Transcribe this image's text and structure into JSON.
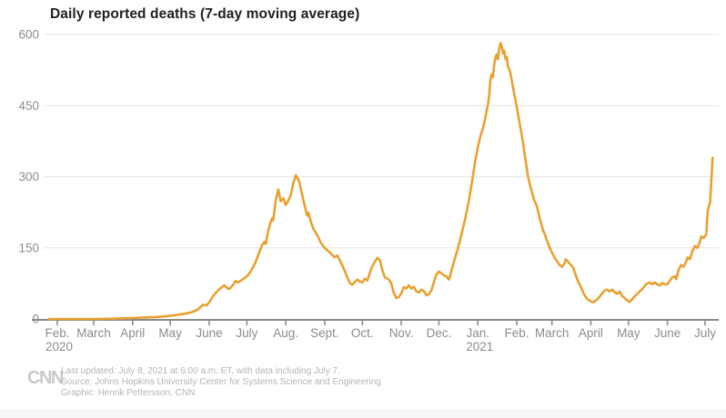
{
  "chart_data": {
    "type": "line",
    "title": "Daily reported deaths (7-day moving average)",
    "xlabel": "",
    "ylabel": "",
    "ylim": [
      0,
      600
    ],
    "y_ticks": [
      0,
      150,
      300,
      450,
      600
    ],
    "grid": "horizontal",
    "legend": "none",
    "line_color": "#E8A131",
    "x_range": [
      "2020-01-25",
      "2021-07-07"
    ],
    "x_ticks": [
      {
        "label": "Feb.",
        "year": "2020",
        "date": "2020-02-01"
      },
      {
        "label": "March",
        "date": "2020-03-01"
      },
      {
        "label": "April",
        "date": "2020-04-01"
      },
      {
        "label": "May",
        "date": "2020-05-01"
      },
      {
        "label": "June",
        "date": "2020-06-01"
      },
      {
        "label": "July",
        "date": "2020-07-01"
      },
      {
        "label": "Aug.",
        "date": "2020-08-01"
      },
      {
        "label": "Sept.",
        "date": "2020-09-01"
      },
      {
        "label": "Oct.",
        "date": "2020-10-01"
      },
      {
        "label": "Nov.",
        "date": "2020-11-01"
      },
      {
        "label": "Dec.",
        "date": "2020-12-01"
      },
      {
        "label": "Jan.",
        "year": "2021",
        "date": "2021-01-01"
      },
      {
        "label": "Feb.",
        "date": "2021-02-01"
      },
      {
        "label": "March",
        "date": "2021-03-01"
      },
      {
        "label": "April",
        "date": "2021-04-01"
      },
      {
        "label": "May",
        "date": "2021-05-01"
      },
      {
        "label": "June",
        "date": "2021-06-01"
      },
      {
        "label": "July",
        "date": "2021-07-01"
      }
    ],
    "series": [
      {
        "name": "Daily reported deaths (7-day moving average)",
        "points": [
          [
            "2020-01-25",
            0
          ],
          [
            "2020-02-05",
            0
          ],
          [
            "2020-02-20",
            0
          ],
          [
            "2020-03-05",
            0
          ],
          [
            "2020-03-20",
            1
          ],
          [
            "2020-04-01",
            2
          ],
          [
            "2020-04-10",
            3
          ],
          [
            "2020-04-20",
            4
          ],
          [
            "2020-04-28",
            6
          ],
          [
            "2020-05-05",
            8
          ],
          [
            "2020-05-12",
            11
          ],
          [
            "2020-05-18",
            14
          ],
          [
            "2020-05-23",
            20
          ],
          [
            "2020-05-27",
            30
          ],
          [
            "2020-05-30",
            29
          ],
          [
            "2020-06-01",
            35
          ],
          [
            "2020-06-04",
            48
          ],
          [
            "2020-06-08",
            60
          ],
          [
            "2020-06-11",
            67
          ],
          [
            "2020-06-13",
            71
          ],
          [
            "2020-06-15",
            66
          ],
          [
            "2020-06-17",
            63
          ],
          [
            "2020-06-20",
            72
          ],
          [
            "2020-06-22",
            80
          ],
          [
            "2020-06-24",
            77
          ],
          [
            "2020-06-27",
            82
          ],
          [
            "2020-06-29",
            86
          ],
          [
            "2020-07-01",
            90
          ],
          [
            "2020-07-04",
            100
          ],
          [
            "2020-07-06",
            110
          ],
          [
            "2020-07-08",
            120
          ],
          [
            "2020-07-10",
            135
          ],
          [
            "2020-07-13",
            155
          ],
          [
            "2020-07-15",
            163
          ],
          [
            "2020-07-16",
            158
          ],
          [
            "2020-07-18",
            185
          ],
          [
            "2020-07-20",
            205
          ],
          [
            "2020-07-21",
            212
          ],
          [
            "2020-07-22",
            208
          ],
          [
            "2020-07-24",
            250
          ],
          [
            "2020-07-26",
            273
          ],
          [
            "2020-07-28",
            248
          ],
          [
            "2020-07-30",
            255
          ],
          [
            "2020-08-01",
            240
          ],
          [
            "2020-08-03",
            250
          ],
          [
            "2020-08-05",
            262
          ],
          [
            "2020-08-07",
            286
          ],
          [
            "2020-08-09",
            303
          ],
          [
            "2020-08-10",
            298
          ],
          [
            "2020-08-11",
            295
          ],
          [
            "2020-08-12",
            286
          ],
          [
            "2020-08-14",
            262
          ],
          [
            "2020-08-16",
            240
          ],
          [
            "2020-08-18",
            218
          ],
          [
            "2020-08-19",
            224
          ],
          [
            "2020-08-21",
            205
          ],
          [
            "2020-08-23",
            190
          ],
          [
            "2020-08-25",
            182
          ],
          [
            "2020-08-27",
            172
          ],
          [
            "2020-08-29",
            160
          ],
          [
            "2020-09-01",
            150
          ],
          [
            "2020-09-04",
            143
          ],
          [
            "2020-09-06",
            138
          ],
          [
            "2020-09-09",
            130
          ],
          [
            "2020-09-11",
            134
          ],
          [
            "2020-09-13",
            124
          ],
          [
            "2020-09-15",
            113
          ],
          [
            "2020-09-17",
            101
          ],
          [
            "2020-09-19",
            88
          ],
          [
            "2020-09-21",
            76
          ],
          [
            "2020-09-23",
            72
          ],
          [
            "2020-09-25",
            78
          ],
          [
            "2020-09-27",
            83
          ],
          [
            "2020-09-29",
            79
          ],
          [
            "2020-10-01",
            77
          ],
          [
            "2020-10-03",
            85
          ],
          [
            "2020-10-05",
            81
          ],
          [
            "2020-10-08",
            106
          ],
          [
            "2020-10-11",
            121
          ],
          [
            "2020-10-13",
            129
          ],
          [
            "2020-10-15",
            124
          ],
          [
            "2020-10-17",
            102
          ],
          [
            "2020-10-19",
            88
          ],
          [
            "2020-10-22",
            83
          ],
          [
            "2020-10-24",
            76
          ],
          [
            "2020-10-26",
            55
          ],
          [
            "2020-10-28",
            44
          ],
          [
            "2020-10-30",
            46
          ],
          [
            "2020-11-01",
            54
          ],
          [
            "2020-11-03",
            67
          ],
          [
            "2020-11-05",
            64
          ],
          [
            "2020-11-07",
            71
          ],
          [
            "2020-11-09",
            64
          ],
          [
            "2020-11-11",
            68
          ],
          [
            "2020-11-13",
            58
          ],
          [
            "2020-11-15",
            56
          ],
          [
            "2020-11-17",
            62
          ],
          [
            "2020-11-19",
            59
          ],
          [
            "2020-11-21",
            50
          ],
          [
            "2020-11-23",
            52
          ],
          [
            "2020-11-25",
            60
          ],
          [
            "2020-11-27",
            78
          ],
          [
            "2020-11-29",
            94
          ],
          [
            "2020-12-01",
            100
          ],
          [
            "2020-12-03",
            96
          ],
          [
            "2020-12-05",
            92
          ],
          [
            "2020-12-07",
            90
          ],
          [
            "2020-12-08",
            86
          ],
          [
            "2020-12-09",
            83
          ],
          [
            "2020-12-10",
            92
          ],
          [
            "2020-12-12",
            112
          ],
          [
            "2020-12-14",
            130
          ],
          [
            "2020-12-16",
            148
          ],
          [
            "2020-12-18",
            168
          ],
          [
            "2020-12-20",
            190
          ],
          [
            "2020-12-22",
            212
          ],
          [
            "2020-12-24",
            238
          ],
          [
            "2020-12-26",
            268
          ],
          [
            "2020-12-28",
            300
          ],
          [
            "2020-12-30",
            335
          ],
          [
            "2021-01-01",
            362
          ],
          [
            "2021-01-03",
            385
          ],
          [
            "2021-01-05",
            402
          ],
          [
            "2021-01-07",
            425
          ],
          [
            "2021-01-09",
            452
          ],
          [
            "2021-01-10",
            470
          ],
          [
            "2021-01-11",
            505
          ],
          [
            "2021-01-12",
            516
          ],
          [
            "2021-01-13",
            510
          ],
          [
            "2021-01-14",
            536
          ],
          [
            "2021-01-15",
            552
          ],
          [
            "2021-01-16",
            558
          ],
          [
            "2021-01-17",
            548
          ],
          [
            "2021-01-18",
            570
          ],
          [
            "2021-01-19",
            582
          ],
          [
            "2021-01-20",
            575
          ],
          [
            "2021-01-21",
            560
          ],
          [
            "2021-01-22",
            566
          ],
          [
            "2021-01-23",
            548
          ],
          [
            "2021-01-24",
            553
          ],
          [
            "2021-01-25",
            532
          ],
          [
            "2021-01-26",
            527
          ],
          [
            "2021-01-27",
            518
          ],
          [
            "2021-01-29",
            488
          ],
          [
            "2021-01-31",
            462
          ],
          [
            "2021-02-02",
            432
          ],
          [
            "2021-02-04",
            402
          ],
          [
            "2021-02-06",
            372
          ],
          [
            "2021-02-08",
            334
          ],
          [
            "2021-02-10",
            300
          ],
          [
            "2021-02-12",
            278
          ],
          [
            "2021-02-14",
            258
          ],
          [
            "2021-02-15",
            250
          ],
          [
            "2021-02-17",
            238
          ],
          [
            "2021-02-19",
            215
          ],
          [
            "2021-02-21",
            196
          ],
          [
            "2021-02-22",
            186
          ],
          [
            "2021-02-23",
            181
          ],
          [
            "2021-02-25",
            166
          ],
          [
            "2021-02-27",
            152
          ],
          [
            "2021-03-01",
            140
          ],
          [
            "2021-03-03",
            130
          ],
          [
            "2021-03-05",
            122
          ],
          [
            "2021-03-07",
            114
          ],
          [
            "2021-03-09",
            110
          ],
          [
            "2021-03-11",
            117
          ],
          [
            "2021-03-12",
            126
          ],
          [
            "2021-03-14",
            120
          ],
          [
            "2021-03-16",
            114
          ],
          [
            "2021-03-18",
            108
          ],
          [
            "2021-03-20",
            92
          ],
          [
            "2021-03-22",
            78
          ],
          [
            "2021-03-24",
            68
          ],
          [
            "2021-03-26",
            55
          ],
          [
            "2021-03-28",
            46
          ],
          [
            "2021-03-30",
            40
          ],
          [
            "2021-04-01",
            37
          ],
          [
            "2021-04-03",
            35
          ],
          [
            "2021-04-06",
            41
          ],
          [
            "2021-04-08",
            47
          ],
          [
            "2021-04-10",
            54
          ],
          [
            "2021-04-12",
            60
          ],
          [
            "2021-04-14",
            62
          ],
          [
            "2021-04-16",
            58
          ],
          [
            "2021-04-18",
            62
          ],
          [
            "2021-04-20",
            56
          ],
          [
            "2021-04-22",
            53
          ],
          [
            "2021-04-24",
            58
          ],
          [
            "2021-04-26",
            48
          ],
          [
            "2021-04-28",
            44
          ],
          [
            "2021-04-30",
            39
          ],
          [
            "2021-05-02",
            36
          ],
          [
            "2021-05-04",
            42
          ],
          [
            "2021-05-06",
            48
          ],
          [
            "2021-05-08",
            53
          ],
          [
            "2021-05-10",
            58
          ],
          [
            "2021-05-12",
            63
          ],
          [
            "2021-05-14",
            70
          ],
          [
            "2021-05-16",
            75
          ],
          [
            "2021-05-18",
            77
          ],
          [
            "2021-05-20",
            73
          ],
          [
            "2021-05-22",
            77
          ],
          [
            "2021-05-24",
            73
          ],
          [
            "2021-05-26",
            71
          ],
          [
            "2021-05-28",
            76
          ],
          [
            "2021-05-30",
            73
          ],
          [
            "2021-06-01",
            73
          ],
          [
            "2021-06-03",
            81
          ],
          [
            "2021-06-05",
            88
          ],
          [
            "2021-06-07",
            90
          ],
          [
            "2021-06-08",
            84
          ],
          [
            "2021-06-10",
            104
          ],
          [
            "2021-06-12",
            114
          ],
          [
            "2021-06-14",
            110
          ],
          [
            "2021-06-16",
            122
          ],
          [
            "2021-06-17",
            130
          ],
          [
            "2021-06-19",
            126
          ],
          [
            "2021-06-21",
            144
          ],
          [
            "2021-06-23",
            154
          ],
          [
            "2021-06-25",
            150
          ],
          [
            "2021-06-27",
            164
          ],
          [
            "2021-06-28",
            174
          ],
          [
            "2021-06-30",
            171
          ],
          [
            "2021-07-01",
            175
          ],
          [
            "2021-07-02",
            179
          ],
          [
            "2021-07-03",
            226
          ],
          [
            "2021-07-04",
            238
          ],
          [
            "2021-07-05",
            245
          ],
          [
            "2021-07-06",
            292
          ],
          [
            "2021-07-07",
            340
          ]
        ]
      }
    ]
  },
  "footer": {
    "logo": "CNN",
    "lines": [
      "Last updated: July 8, 2021 at 6:00 a.m. ET, with data including July 7.",
      "Source: Johns Hopkins University Center for Systems Science and Engineering",
      "Graphic: Henrik Pettersson, CNN"
    ]
  },
  "colors": {
    "line": "#E8A131",
    "grid": "#e4e4e4",
    "axis": "#8a8a8a",
    "tick_label": "#8c8c8c",
    "title_text": "#1f1f1f",
    "footer_text": "#b4b4b4"
  }
}
